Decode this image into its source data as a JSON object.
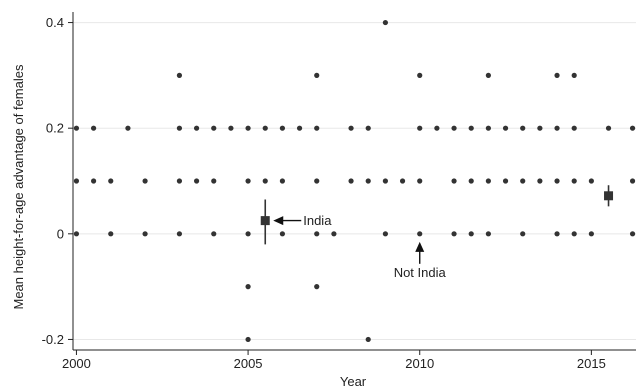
{
  "chart_data": {
    "type": "scatter",
    "title": "",
    "xlabel": "Year",
    "ylabel": "Mean height-for-age advantage of females",
    "xlim": [
      1999.9,
      2016.3
    ],
    "ylim": [
      -0.22,
      0.42
    ],
    "x_ticks": [
      2000,
      2005,
      2010,
      2015
    ],
    "x_tick_labels": [
      "2000",
      "2005",
      "2010",
      "2015"
    ],
    "y_ticks": [
      -0.2,
      0,
      0.2,
      0.4
    ],
    "y_tick_labels": [
      "-0.2",
      "0",
      "0.2",
      "0.4"
    ],
    "grid": "horizontal",
    "legend": "none",
    "colors": {
      "points": "#333333",
      "grid": "#e8e8e8",
      "axis": "#222222"
    },
    "points": [
      {
        "x": 2000,
        "y": 0.2
      },
      {
        "x": 2000.5,
        "y": 0.2
      },
      {
        "x": 2001.5,
        "y": 0.2
      },
      {
        "x": 2003,
        "y": 0.2
      },
      {
        "x": 2003.5,
        "y": 0.2
      },
      {
        "x": 2004,
        "y": 0.2
      },
      {
        "x": 2004.5,
        "y": 0.2
      },
      {
        "x": 2005,
        "y": 0.2
      },
      {
        "x": 2005.5,
        "y": 0.2
      },
      {
        "x": 2006,
        "y": 0.2
      },
      {
        "x": 2006.5,
        "y": 0.2
      },
      {
        "x": 2007,
        "y": 0.2
      },
      {
        "x": 2008,
        "y": 0.2
      },
      {
        "x": 2008.5,
        "y": 0.2
      },
      {
        "x": 2010,
        "y": 0.2
      },
      {
        "x": 2010.5,
        "y": 0.2
      },
      {
        "x": 2011,
        "y": 0.2
      },
      {
        "x": 2011.5,
        "y": 0.2
      },
      {
        "x": 2012,
        "y": 0.2
      },
      {
        "x": 2012.5,
        "y": 0.2
      },
      {
        "x": 2013,
        "y": 0.2
      },
      {
        "x": 2013.5,
        "y": 0.2
      },
      {
        "x": 2014,
        "y": 0.2
      },
      {
        "x": 2014.5,
        "y": 0.2
      },
      {
        "x": 2015.5,
        "y": 0.2
      },
      {
        "x": 2016.2,
        "y": 0.2
      },
      {
        "x": 2000,
        "y": 0.1
      },
      {
        "x": 2000.5,
        "y": 0.1
      },
      {
        "x": 2001,
        "y": 0.1
      },
      {
        "x": 2002,
        "y": 0.1
      },
      {
        "x": 2003,
        "y": 0.1
      },
      {
        "x": 2003.5,
        "y": 0.1
      },
      {
        "x": 2004,
        "y": 0.1
      },
      {
        "x": 2005,
        "y": 0.1
      },
      {
        "x": 2005.5,
        "y": 0.1
      },
      {
        "x": 2006,
        "y": 0.1
      },
      {
        "x": 2007,
        "y": 0.1
      },
      {
        "x": 2008,
        "y": 0.1
      },
      {
        "x": 2008.5,
        "y": 0.1
      },
      {
        "x": 2009,
        "y": 0.1
      },
      {
        "x": 2009.5,
        "y": 0.1
      },
      {
        "x": 2010,
        "y": 0.1
      },
      {
        "x": 2011,
        "y": 0.1
      },
      {
        "x": 2011.5,
        "y": 0.1
      },
      {
        "x": 2012,
        "y": 0.1
      },
      {
        "x": 2012.5,
        "y": 0.1
      },
      {
        "x": 2013,
        "y": 0.1
      },
      {
        "x": 2013.5,
        "y": 0.1
      },
      {
        "x": 2014,
        "y": 0.1
      },
      {
        "x": 2014.5,
        "y": 0.1
      },
      {
        "x": 2015,
        "y": 0.1
      },
      {
        "x": 2016.2,
        "y": 0.1
      },
      {
        "x": 2000,
        "y": 0
      },
      {
        "x": 2001,
        "y": 0
      },
      {
        "x": 2002,
        "y": 0
      },
      {
        "x": 2003,
        "y": 0
      },
      {
        "x": 2004,
        "y": 0
      },
      {
        "x": 2005,
        "y": 0
      },
      {
        "x": 2006,
        "y": 0
      },
      {
        "x": 2007,
        "y": 0
      },
      {
        "x": 2007.5,
        "y": 0
      },
      {
        "x": 2009,
        "y": 0
      },
      {
        "x": 2010,
        "y": 0
      },
      {
        "x": 2011,
        "y": 0
      },
      {
        "x": 2011.5,
        "y": 0
      },
      {
        "x": 2012,
        "y": 0
      },
      {
        "x": 2013,
        "y": 0
      },
      {
        "x": 2014,
        "y": 0
      },
      {
        "x": 2014.5,
        "y": 0
      },
      {
        "x": 2015,
        "y": 0
      },
      {
        "x": 2016.2,
        "y": 0
      },
      {
        "x": 2003,
        "y": 0.3
      },
      {
        "x": 2007,
        "y": 0.3
      },
      {
        "x": 2010,
        "y": 0.3
      },
      {
        "x": 2012,
        "y": 0.3
      },
      {
        "x": 2014,
        "y": 0.3
      },
      {
        "x": 2014.5,
        "y": 0.3
      },
      {
        "x": 2009,
        "y": 0.4
      },
      {
        "x": 2005,
        "y": -0.1
      },
      {
        "x": 2007,
        "y": -0.1
      },
      {
        "x": 2005,
        "y": -0.2
      },
      {
        "x": 2008.5,
        "y": -0.2
      }
    ],
    "estimates": [
      {
        "x": 2005.5,
        "y": 0.025,
        "ci": [
          -0.02,
          0.065
        ]
      },
      {
        "x": 2015.5,
        "y": 0.072,
        "ci": [
          0.052,
          0.092
        ]
      }
    ],
    "annotations": [
      {
        "text": "India",
        "target_x": 2005.5,
        "target_y": 0.025,
        "side": "right"
      },
      {
        "text": "Not India",
        "target_x": 2010,
        "target_y": 0,
        "side": "below"
      }
    ]
  }
}
